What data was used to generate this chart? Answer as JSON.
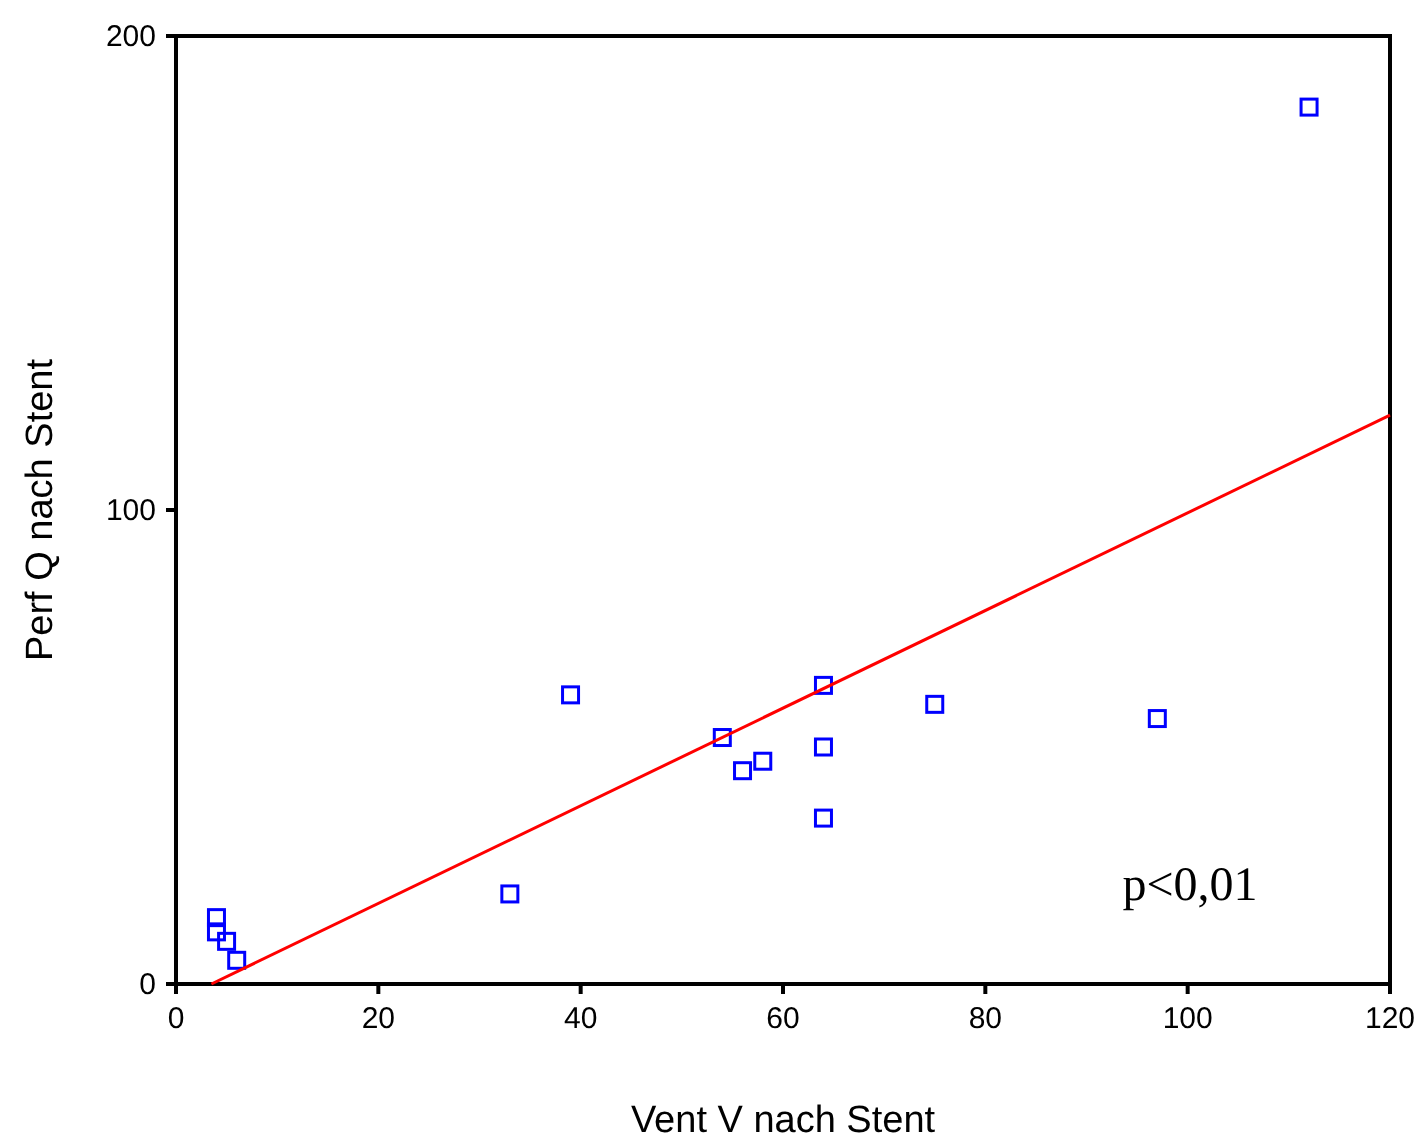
{
  "chart_data": {
    "type": "scatter",
    "xlabel": "Vent V nach Stent",
    "ylabel": "Perf Q nach Stent",
    "xlim": [
      0,
      120
    ],
    "ylim": [
      0,
      200
    ],
    "xticks": [
      0,
      20,
      40,
      60,
      80,
      100,
      120
    ],
    "yticks": [
      0,
      100,
      200
    ],
    "marker": "square",
    "grid": false,
    "annotations": [
      "p<0,01"
    ],
    "series": [
      {
        "color": "#0000ff",
        "x": [
          4,
          4,
          5,
          6,
          33,
          39,
          54,
          56,
          58,
          64,
          64,
          64,
          75,
          97,
          112
        ],
        "values": [
          14,
          11,
          9,
          5,
          19,
          61,
          52,
          45,
          47,
          63,
          50,
          35,
          59,
          56,
          185
        ]
      },
      {
        "type": "line",
        "color": "#ff0000",
        "marker": "none",
        "x": [
          3.5,
          120
        ],
        "values": [
          0,
          120
        ]
      }
    ]
  }
}
